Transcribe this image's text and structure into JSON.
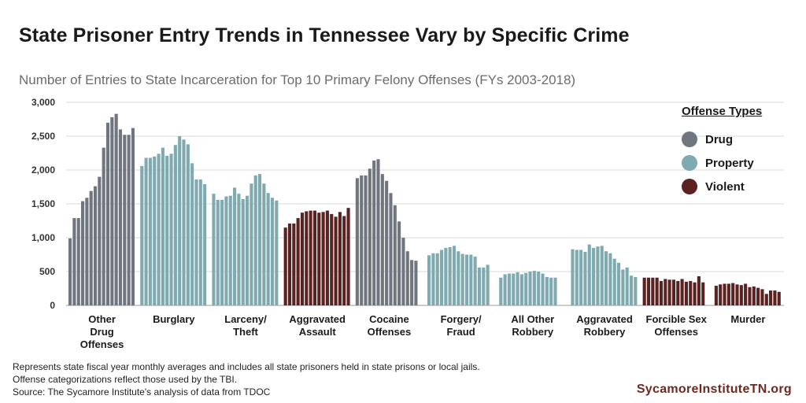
{
  "title": "State Prisoner Entry Trends in Tennessee Vary by Specific Crime",
  "subtitle": "Number of Entries to State Incarceration for Top 10 Primary Felony Offenses (FYs 2003-2018)",
  "legend": {
    "title": "Offense Types",
    "items": [
      {
        "label": "Drug",
        "color": "#6f767f"
      },
      {
        "label": "Property",
        "color": "#7eaab0"
      },
      {
        "label": "Violent",
        "color": "#5a2220"
      }
    ]
  },
  "notes": [
    "Represents state fiscal year monthly averages and includes all state prisoners held in state prisons or local jails.",
    "Offense categorizations reflect those used by the TBI.",
    "Source: The Sycamore Institute's analysis of data from TDOC"
  ],
  "brand": "SycamoreInstituteTN.org",
  "chart_data": {
    "type": "bar",
    "ylim": [
      0,
      3000
    ],
    "yticks": [
      "0",
      "500",
      "1,000",
      "1,500",
      "2,000",
      "2,500",
      "3,000"
    ],
    "ytick_values": [
      0,
      500,
      1000,
      1500,
      2000,
      2500,
      3000
    ],
    "grid": true,
    "x": [
      "2003",
      "2004",
      "2005",
      "2006",
      "2007",
      "2008",
      "2009",
      "2010",
      "2011",
      "2012",
      "2013",
      "2014",
      "2015",
      "2016",
      "2017",
      "2018"
    ],
    "series": [
      {
        "name": "Other Drug Offenses",
        "label_lines": [
          "Other",
          "Drug",
          "Offenses"
        ],
        "type": "Drug",
        "values": [
          990,
          1290,
          1290,
          1540,
          1590,
          1690,
          1760,
          1900,
          2330,
          2700,
          2780,
          2830,
          2600,
          2520,
          2520,
          2620
        ]
      },
      {
        "name": "Burglary",
        "label_lines": [
          "Burglary"
        ],
        "type": "Property",
        "values": [
          2060,
          2180,
          2180,
          2200,
          2240,
          2330,
          2210,
          2240,
          2370,
          2500,
          2450,
          2380,
          2100,
          1860,
          1860,
          1790
        ]
      },
      {
        "name": "Larceny/ Theft",
        "label_lines": [
          "Larceny/",
          "Theft"
        ],
        "type": "Property",
        "values": [
          1650,
          1560,
          1560,
          1610,
          1620,
          1740,
          1650,
          1570,
          1620,
          1800,
          1920,
          1940,
          1800,
          1660,
          1590,
          1550
        ]
      },
      {
        "name": "Aggravated Assault",
        "label_lines": [
          "Aggravated",
          "Assault"
        ],
        "type": "Violent",
        "values": [
          1150,
          1210,
          1210,
          1290,
          1370,
          1390,
          1400,
          1400,
          1370,
          1380,
          1400,
          1350,
          1310,
          1380,
          1320,
          1440
        ]
      },
      {
        "name": "Cocaine Offenses",
        "label_lines": [
          "Cocaine",
          "Offenses"
        ],
        "type": "Drug",
        "values": [
          1880,
          1920,
          1920,
          2020,
          2140,
          2160,
          1940,
          1840,
          1660,
          1480,
          1240,
          1000,
          800,
          670,
          660,
          null
        ]
      },
      {
        "name": "Forgery/ Fraud",
        "label_lines": [
          "Forgery/",
          "Fraud"
        ],
        "type": "Property",
        "values": [
          740,
          770,
          770,
          820,
          850,
          860,
          880,
          800,
          760,
          750,
          750,
          720,
          560,
          560,
          600,
          null
        ]
      },
      {
        "name": "All Other Robbery",
        "label_lines": [
          "All Other",
          "Robbery"
        ],
        "type": "Property",
        "values": [
          410,
          460,
          470,
          470,
          490,
          460,
          480,
          500,
          510,
          500,
          470,
          420,
          410,
          410,
          null,
          null
        ]
      },
      {
        "name": "Aggravated Robbery",
        "label_lines": [
          "Aggravated",
          "Robbery"
        ],
        "type": "Property",
        "values": [
          830,
          820,
          820,
          790,
          900,
          850,
          870,
          880,
          800,
          770,
          690,
          630,
          530,
          560,
          440,
          420
        ]
      },
      {
        "name": "Forcible Sex Offenses",
        "label_lines": [
          "Forcible Sex",
          "Offenses"
        ],
        "type": "Violent",
        "values": [
          410,
          410,
          410,
          410,
          360,
          390,
          380,
          380,
          360,
          390,
          350,
          360,
          340,
          430,
          340,
          null
        ]
      },
      {
        "name": "Murder",
        "label_lines": [
          "Murder"
        ],
        "type": "Violent",
        "values": [
          290,
          310,
          320,
          320,
          330,
          310,
          300,
          320,
          270,
          280,
          260,
          240,
          170,
          220,
          220,
          200
        ]
      }
    ]
  }
}
